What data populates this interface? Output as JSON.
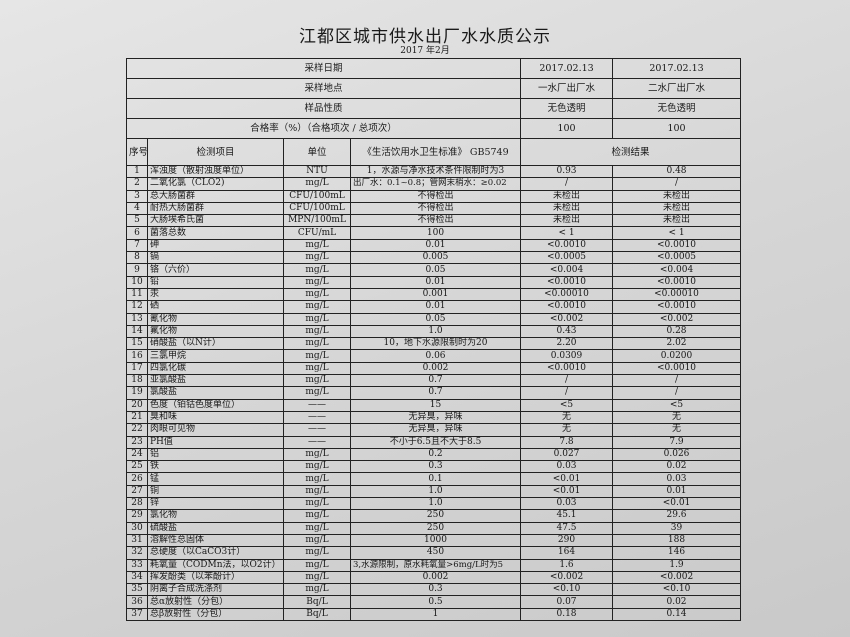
{
  "title": "江都区城市供水出厂水水质公示",
  "subtitle": "2017 年2月",
  "header_rows": [
    {
      "label": "采样日期",
      "plant1": "2017.02.13",
      "plant2": "2017.02.13"
    },
    {
      "label": "采样地点",
      "plant1": "一水厂出厂水",
      "plant2": "二水厂出厂水"
    },
    {
      "label": "样品性质",
      "plant1": "无色透明",
      "plant2": "无色透明"
    },
    {
      "label": "合格率（%）（合格项次 / 总项次）",
      "plant1": "100",
      "plant2": "100"
    }
  ],
  "columns": {
    "seq": "序号",
    "item": "检测项目",
    "unit": "单位",
    "standard": "《生活饮用水卫生标准》 GB5749",
    "results": "检测结果"
  },
  "rows": [
    {
      "no": "1",
      "item": "浑浊度（散射浊度单位）",
      "unit": "NTU",
      "std": "1，水源与净水技术条件限制时为3",
      "r1": "0.93",
      "r2": "0.48"
    },
    {
      "no": "2",
      "item": "二氧化氯（CLO2)",
      "unit": "mg/L",
      "std": "出厂水：0.1~0.8；管网末梢水：≥0.02",
      "r1": "/",
      "r2": "/"
    },
    {
      "no": "3",
      "item": "总大肠菌群",
      "unit": "CFU/100mL",
      "std": "不得检出",
      "r1": "未检出",
      "r2": "未检出"
    },
    {
      "no": "4",
      "item": "耐热大肠菌群",
      "unit": "CFU/100mL",
      "std": "不得检出",
      "r1": "未检出",
      "r2": "未检出"
    },
    {
      "no": "5",
      "item": "大肠埃希氏菌",
      "unit": "MPN/100mL",
      "std": "不得检出",
      "r1": "未检出",
      "r2": "未检出"
    },
    {
      "no": "6",
      "item": "菌落总数",
      "unit": "CFU/mL",
      "std": "100",
      "r1": "< 1",
      "r2": "< 1"
    },
    {
      "no": "7",
      "item": "砷",
      "unit": "mg/L",
      "std": "0.01",
      "r1": "<0.0010",
      "r2": "<0.0010"
    },
    {
      "no": "8",
      "item": "镉",
      "unit": "mg/L",
      "std": "0.005",
      "r1": "<0.0005",
      "r2": "<0.0005"
    },
    {
      "no": "9",
      "item": "铬（六价）",
      "unit": "mg/L",
      "std": "0.05",
      "r1": "<0.004",
      "r2": "<0.004"
    },
    {
      "no": "10",
      "item": "铅",
      "unit": "mg/L",
      "std": "0.01",
      "r1": "<0.0010",
      "r2": "<0.0010"
    },
    {
      "no": "11",
      "item": "汞",
      "unit": "mg/L",
      "std": "0.001",
      "r1": "<0.00010",
      "r2": "<0.00010"
    },
    {
      "no": "12",
      "item": "硒",
      "unit": "mg/L",
      "std": "0.01",
      "r1": "<0.0010",
      "r2": "<0.0010"
    },
    {
      "no": "13",
      "item": "氰化物",
      "unit": "mg/L",
      "std": "0.05",
      "r1": "<0.002",
      "r2": "<0.002"
    },
    {
      "no": "14",
      "item": "氟化物",
      "unit": "mg/L",
      "std": "1.0",
      "r1": "0.43",
      "r2": "0.28"
    },
    {
      "no": "15",
      "item": "硝酸盐（以N计）",
      "unit": "mg/L",
      "std": "10，地下水源限制时为20",
      "r1": "2.20",
      "r2": "2.02"
    },
    {
      "no": "16",
      "item": "三氯甲烷",
      "unit": "mg/L",
      "std": "0.06",
      "r1": "0.0309",
      "r2": "0.0200"
    },
    {
      "no": "17",
      "item": "四氯化碳",
      "unit": "mg/L",
      "std": "0.002",
      "r1": "<0.0010",
      "r2": "<0.0010"
    },
    {
      "no": "18",
      "item": "亚氯酸盐",
      "unit": "mg/L",
      "std": "0.7",
      "r1": "/",
      "r2": "/"
    },
    {
      "no": "19",
      "item": "氯酸盐",
      "unit": "mg/L",
      "std": "0.7",
      "r1": "/",
      "r2": "/"
    },
    {
      "no": "20",
      "item": "色度（铂钴色度单位）",
      "unit": "——",
      "std": "15",
      "r1": "<5",
      "r2": "<5"
    },
    {
      "no": "21",
      "item": "臭和味",
      "unit": "——",
      "std": "无异臭，异味",
      "r1": "无",
      "r2": "无"
    },
    {
      "no": "22",
      "item": "肉眼可见物",
      "unit": "——",
      "std": "无异臭，异味",
      "r1": "无",
      "r2": "无"
    },
    {
      "no": "23",
      "item": "PH值",
      "unit": "——",
      "std": "不小于6.5且不大于8.5",
      "r1": "7.8",
      "r2": "7.9"
    },
    {
      "no": "24",
      "item": "铝",
      "unit": "mg/L",
      "std": "0.2",
      "r1": "0.027",
      "r2": "0.026"
    },
    {
      "no": "25",
      "item": "铁",
      "unit": "mg/L",
      "std": "0.3",
      "r1": "0.03",
      "r2": "0.02"
    },
    {
      "no": "26",
      "item": "锰",
      "unit": "mg/L",
      "std": "0.1",
      "r1": "<0.01",
      "r2": "0.03"
    },
    {
      "no": "27",
      "item": "铜",
      "unit": "mg/L",
      "std": "1.0",
      "r1": "<0.01",
      "r2": "0.01"
    },
    {
      "no": "28",
      "item": "锌",
      "unit": "mg/L",
      "std": "1.0",
      "r1": "0.03",
      "r2": "<0.01"
    },
    {
      "no": "29",
      "item": "氯化物",
      "unit": "mg/L",
      "std": "250",
      "r1": "45.1",
      "r2": "29.6"
    },
    {
      "no": "30",
      "item": "硫酸盐",
      "unit": "mg/L",
      "std": "250",
      "r1": "47.5",
      "r2": "39"
    },
    {
      "no": "31",
      "item": "溶解性总固体",
      "unit": "mg/L",
      "std": "1000",
      "r1": "290",
      "r2": "188"
    },
    {
      "no": "32",
      "item": "总硬度（以CaCO3计）",
      "unit": "mg/L",
      "std": "450",
      "r1": "164",
      "r2": "146"
    },
    {
      "no": "33",
      "item": "耗氧量（CODMn法，以O2计）",
      "unit": "mg/L",
      "std": "3,水源限制，原水耗氧量>6mg/L时为5",
      "r1": "1.6",
      "r2": "1.9"
    },
    {
      "no": "34",
      "item": "挥发酚类（以苯酚计）",
      "unit": "mg/L",
      "std": "0.002",
      "r1": "<0.002",
      "r2": "<0.002"
    },
    {
      "no": "35",
      "item": "阴离子合成洗涤剂",
      "unit": "mg/L",
      "std": "0.3",
      "r1": "<0.10",
      "r2": "<0.10"
    },
    {
      "no": "36",
      "item": "总α放射性（分包）",
      "unit": "Bq/L",
      "std": "0.5",
      "r1": "0.07",
      "r2": "0.02"
    },
    {
      "no": "37",
      "item": "总β放射性（分包）",
      "unit": "Bq/L",
      "std": "1",
      "r1": "0.18",
      "r2": "0.14"
    }
  ]
}
